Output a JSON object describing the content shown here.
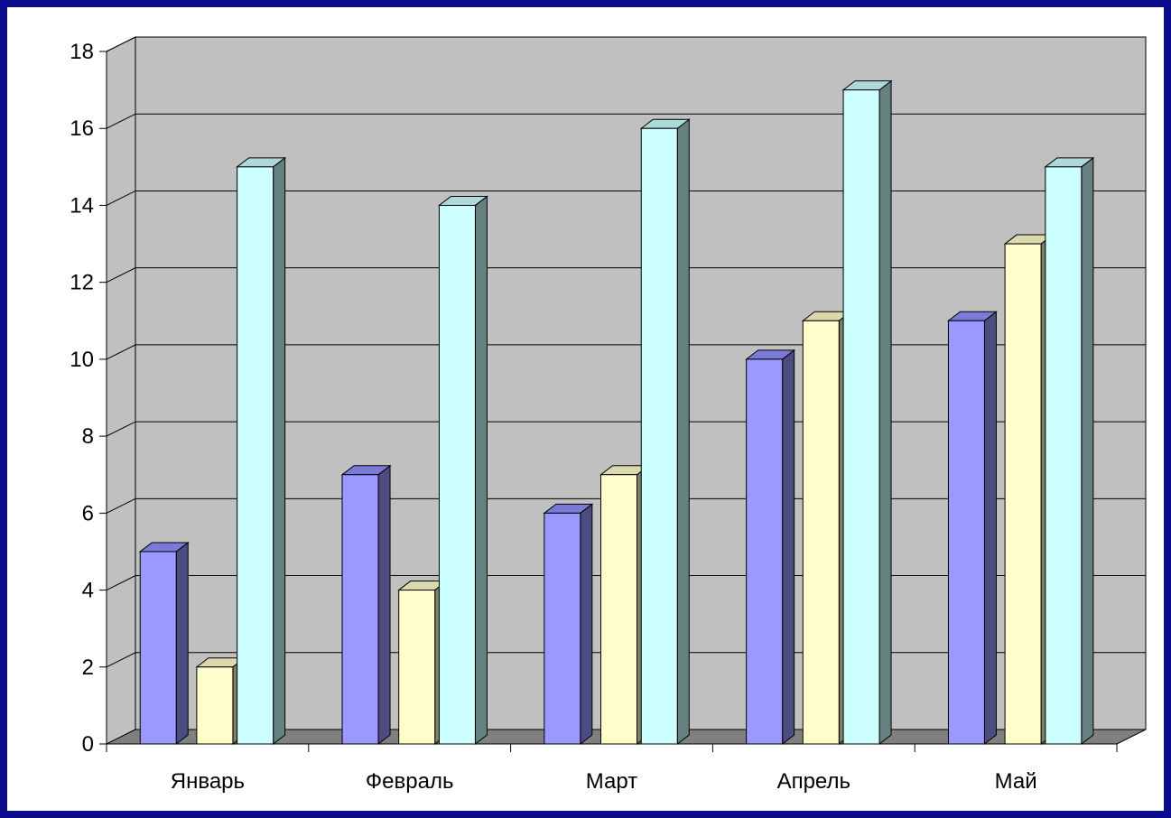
{
  "chart_data": {
    "type": "bar",
    "title": "",
    "xlabel": "",
    "ylabel": "",
    "categories": [
      "Январь",
      "Февраль",
      "Март",
      "Апрель",
      "Май"
    ],
    "series": [
      {
        "values": [
          5,
          7,
          6,
          10,
          11
        ],
        "front": "#9999ff",
        "side": "#4c4c80",
        "top": "#7a7ad9"
      },
      {
        "values": [
          2,
          4,
          7,
          11,
          13
        ],
        "front": "#ffffcc",
        "side": "#808066",
        "top": "#d9d9ad"
      },
      {
        "values": [
          15,
          14,
          16,
          17,
          15
        ],
        "front": "#ccffff",
        "side": "#668080",
        "top": "#add9d9"
      }
    ],
    "ylim": [
      0,
      18
    ],
    "yticks": [
      "0",
      "2",
      "4",
      "6",
      "8",
      "10",
      "12",
      "14",
      "16",
      "18"
    ],
    "grid": true,
    "legend": "none",
    "colors": {
      "wall": "#c0c0c0",
      "floor": "#808080",
      "frame": "#0a0a8c",
      "gridline": "#000000"
    }
  }
}
